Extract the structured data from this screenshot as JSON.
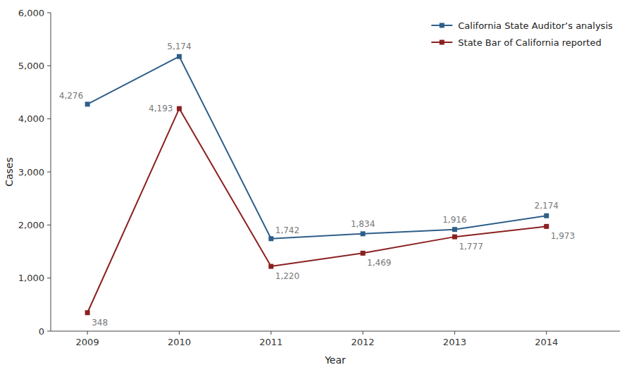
{
  "chart_data": {
    "type": "line",
    "x": [
      2009,
      2010,
      2011,
      2012,
      2013,
      2014
    ],
    "xlim": [
      2008.6,
      2014.8
    ],
    "xticks": [
      2009,
      2010,
      2011,
      2012,
      2013,
      2014
    ],
    "ylim": [
      0,
      6000
    ],
    "yticks": [
      0,
      {
        "value": 1000,
        "label": "1,000"
      },
      {
        "value": 2000,
        "label": "2,000"
      },
      {
        "value": 3000,
        "label": "3,000"
      },
      {
        "value": 4000,
        "label": "4,000"
      },
      {
        "value": 5000,
        "label": "5,000"
      },
      {
        "value": 6000,
        "label": "6,000"
      }
    ],
    "xlabel": "Year",
    "ylabel": "Cases",
    "grid": false,
    "legend": "upper right",
    "data_labels": true,
    "marker": "square",
    "series": [
      {
        "name": "California State Auditor’s analysis",
        "color": "#2e5f8a",
        "values": [
          4276,
          5174,
          1742,
          1834,
          1916,
          2174
        ],
        "value_labels": [
          "4,276",
          "5,174",
          "1,742",
          "1,834",
          "1,916",
          "2,174"
        ]
      },
      {
        "name": "State Bar of California reported",
        "color": "#8b2020",
        "values": [
          348,
          4193,
          1220,
          1469,
          1777,
          1973
        ],
        "value_labels": [
          "348",
          "4,193",
          "1,220",
          "1,469",
          "1,777",
          "1,973"
        ]
      }
    ]
  }
}
